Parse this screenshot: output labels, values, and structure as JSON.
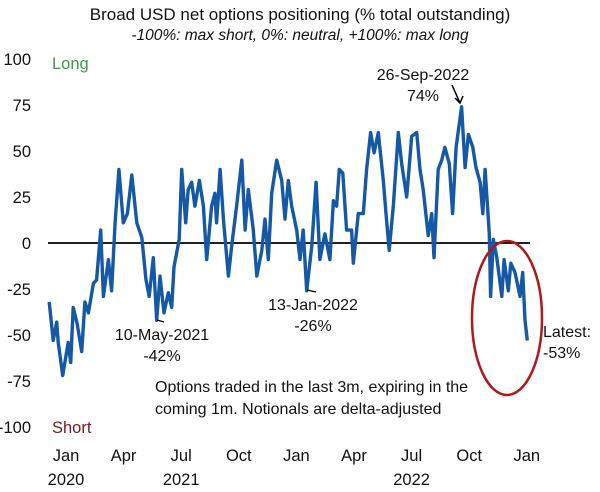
{
  "chart_data": {
    "type": "line",
    "title": "Broad USD net options positioning (% total outstanding)",
    "subtitle": "-100%: max short, 0%: neutral, +100%: max long",
    "ylim": [
      -100,
      100
    ],
    "y_ticks": [
      100,
      75,
      50,
      25,
      0,
      -25,
      -50,
      -75,
      -100
    ],
    "y_tick_labels": [
      "100",
      "75",
      "50",
      "25",
      "0",
      "-25",
      "-50",
      "-75",
      "-100"
    ],
    "x_unit": "months since first Jan tick",
    "x_ticks": [
      0,
      3,
      6,
      9,
      12,
      15,
      18,
      21,
      24
    ],
    "x_tick_labels": [
      "Jan",
      "Apr",
      "Jul",
      "Oct",
      "Jan",
      "Apr",
      "Jul",
      "Oct",
      "Jan"
    ],
    "x_year_labels": [
      {
        "x": 0,
        "label": "2020"
      },
      {
        "x": 6,
        "label": "2021"
      },
      {
        "x": 18,
        "label": "2022"
      }
    ],
    "zero_line": true,
    "grid": false,
    "zone_labels": {
      "long": "Long",
      "short": "Short"
    },
    "colors": {
      "line": "#1458a6",
      "long": "#3a9a4a",
      "short": "#7a1a1a",
      "circle": "#b0181c",
      "zero": "#000000"
    },
    "series": [
      {
        "name": "Broad USD net options positioning",
        "x": [
          -0.77,
          -0.56,
          -0.38,
          -0.3,
          -0.07,
          0.22,
          0.35,
          0.48,
          0.69,
          0.92,
          1.09,
          1.27,
          1.53,
          1.7,
          1.91,
          2.05,
          2.31,
          2.48,
          2.66,
          2.86,
          3.09,
          3.3,
          3.53,
          3.79,
          4.05,
          4.27,
          4.44,
          4.65,
          4.83,
          5.0,
          5.21,
          5.43,
          5.61,
          5.73,
          6.0,
          6.13,
          6.34,
          6.47,
          6.65,
          6.82,
          7.05,
          7.26,
          7.43,
          7.69,
          7.86,
          7.95,
          8.13,
          8.3,
          8.56,
          8.73,
          8.99,
          9.26,
          9.43,
          9.6,
          9.86,
          10.04,
          10.3,
          10.47,
          10.64,
          10.82,
          11.08,
          11.34,
          11.51,
          11.68,
          11.86,
          12.12,
          12.29,
          12.46,
          12.64,
          12.9,
          13.13,
          13.33,
          13.59,
          13.85,
          14.03,
          14.2,
          14.34,
          14.52,
          14.72,
          14.98,
          15.07,
          15.33,
          15.59,
          15.76,
          15.97,
          16.15,
          16.37,
          16.63,
          16.77,
          16.94,
          17.15,
          17.41,
          17.59,
          17.85,
          18.11,
          18.37,
          18.54,
          18.71,
          18.97,
          19.15,
          19.27,
          19.49,
          19.67,
          19.84,
          20.07,
          20.24,
          20.42,
          20.71,
          20.89,
          21.06,
          21.29,
          21.46,
          21.67,
          21.81,
          21.93,
          22.15,
          22.22,
          22.36,
          22.54,
          22.8,
          22.92,
          23.14,
          23.27,
          23.49,
          23.75,
          23.89,
          24.01,
          24.13
        ],
        "values": [
          -32,
          -53,
          -43,
          -54,
          -72,
          -54,
          -65,
          -35,
          -44,
          -59,
          -32,
          -38,
          -22,
          -20,
          7,
          -29,
          -9,
          -26,
          11,
          40,
          11,
          16,
          37,
          11,
          3,
          -20,
          -29,
          -8,
          -42,
          -18,
          -38,
          -27,
          -35,
          -13,
          2,
          40,
          11,
          29,
          33,
          20,
          34,
          20,
          -9,
          20,
          27,
          11,
          40,
          13,
          -18,
          -2,
          20,
          45,
          7,
          29,
          7,
          -18,
          -4,
          13,
          -9,
          27,
          45,
          34,
          13,
          34,
          20,
          7,
          -9,
          7,
          -26,
          -2,
          33,
          -9,
          5,
          -9,
          23,
          20,
          40,
          38,
          7,
          7,
          -11,
          16,
          16,
          40,
          60,
          49,
          60,
          34,
          16,
          -4,
          20,
          60,
          43,
          25,
          58,
          60,
          40,
          29,
          4,
          16,
          -8,
          40,
          45,
          52,
          43,
          16,
          52,
          74,
          41,
          59,
          52,
          41,
          33,
          16,
          40,
          5,
          -29,
          2,
          -8,
          -29,
          -9,
          -26,
          -11,
          -16,
          -29,
          -16,
          -42,
          -53
        ]
      }
    ],
    "annotations": [
      {
        "x": 20.71,
        "y": 74,
        "line1": "26-Sep-2022",
        "line2": "74%"
      },
      {
        "x": 4.83,
        "y": -42,
        "line1": "10-May-2021",
        "line2": "-42%"
      },
      {
        "x": 12.64,
        "y": -26,
        "line1": "13-Jan-2022",
        "line2": "-26%"
      },
      {
        "x": 24.13,
        "y": -53,
        "line1": "Latest:",
        "line2": "-53%"
      }
    ],
    "note_lines": [
      "Options traded in the last 3m, expiring in the",
      "coming 1m. Notionals are delta-adjusted"
    ]
  }
}
